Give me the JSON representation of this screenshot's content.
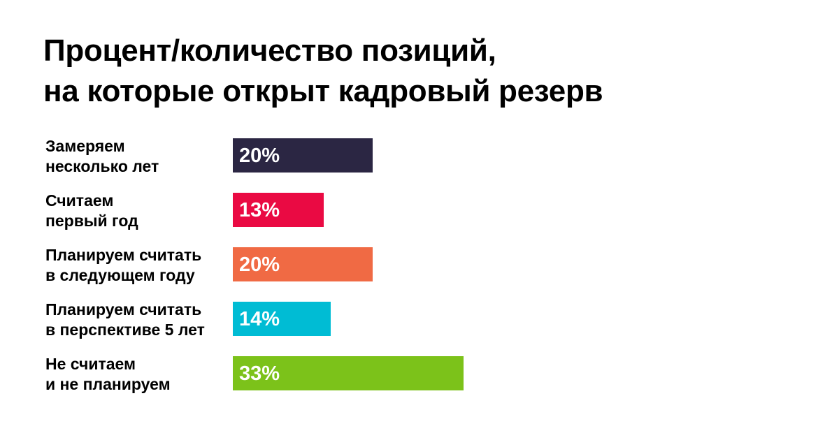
{
  "chart_data": {
    "type": "bar",
    "orientation": "horizontal",
    "title_lines": [
      "Процент/количество позиций,",
      "на которые открыт кадровый резерв"
    ],
    "categories": [
      [
        "Замеряем",
        "несколько лет"
      ],
      [
        "Считаем",
        "первый год"
      ],
      [
        "Планируем считать",
        "в следующем году"
      ],
      [
        "Планируем считать",
        "в перспективе 5 лет"
      ],
      [
        "Не считаем",
        "и не планируем"
      ]
    ],
    "values": [
      20,
      13,
      20,
      14,
      33
    ],
    "value_labels": [
      "20%",
      "13%",
      "20%",
      "14%",
      "33%"
    ],
    "unit": "%",
    "colors": [
      "#2b2643",
      "#ea0a43",
      "#f06a44",
      "#00bcd4",
      "#7cc21a"
    ],
    "xlim": [
      0,
      33
    ],
    "grid": false,
    "legend": "none"
  }
}
